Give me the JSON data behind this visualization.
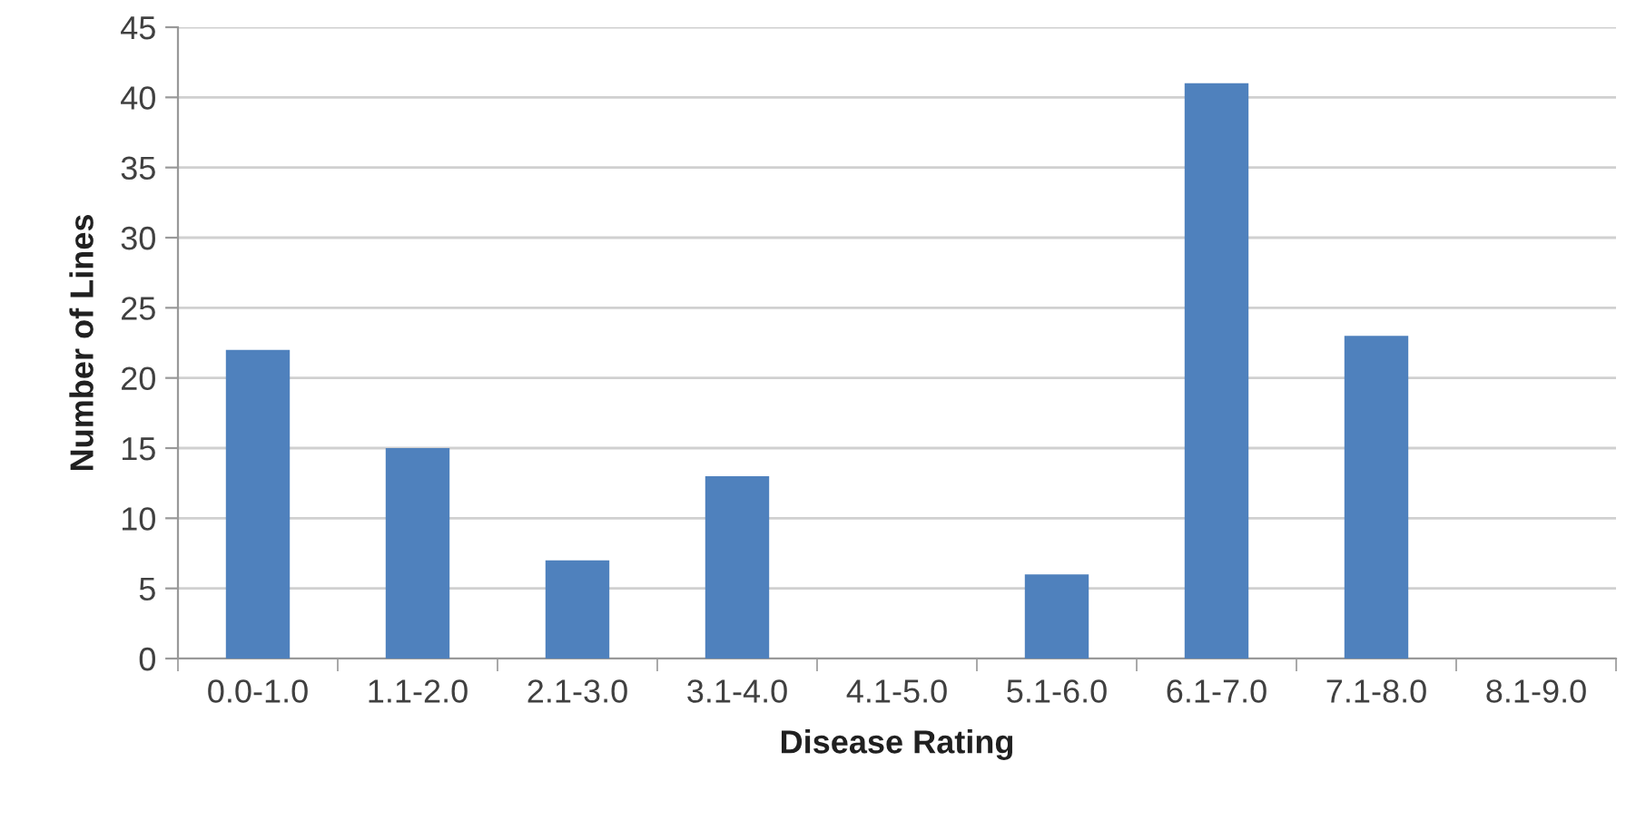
{
  "chart_data": {
    "type": "bar",
    "xlabel": "Disease Rating",
    "ylabel": "Number of Lines",
    "categories": [
      "0.0-1.0",
      "1.1-2.0",
      "2.1-3.0",
      "3.1-4.0",
      "4.1-5.0",
      "5.1-6.0",
      "6.1-7.0",
      "7.1-8.0",
      "8.1-9.0"
    ],
    "values": [
      22,
      15,
      7,
      13,
      0,
      6,
      41,
      23,
      0
    ],
    "color": "#4f81bd",
    "ylim": [
      0,
      45
    ],
    "yticks": [
      0,
      5,
      10,
      15,
      20,
      25,
      30,
      35,
      40,
      45
    ],
    "grid": "y",
    "legend": false
  }
}
